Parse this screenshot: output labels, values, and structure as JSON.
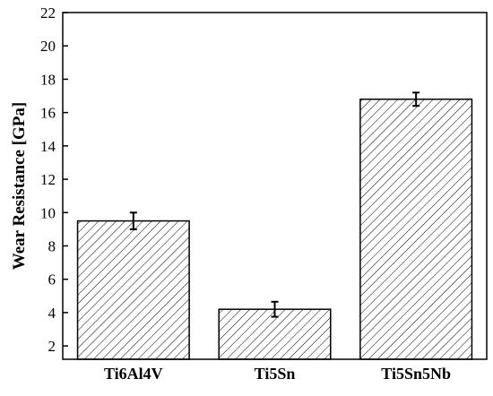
{
  "chart_data": {
    "type": "bar",
    "title": "",
    "xlabel": "",
    "ylabel": "Wear Resistance [GPa]",
    "categories": [
      "Ti6Al4V",
      "Ti5Sn",
      "Ti5Sn5Nb"
    ],
    "values": [
      9.5,
      4.2,
      16.8
    ],
    "errors": [
      0.5,
      0.45,
      0.4
    ],
    "ylim": [
      1.2,
      22
    ],
    "yticks": [
      2,
      4,
      6,
      8,
      10,
      12,
      14,
      16,
      18,
      20,
      22
    ],
    "bar_fill": "hatched",
    "bar_color": "#000000",
    "grid": false,
    "legend": "none"
  }
}
